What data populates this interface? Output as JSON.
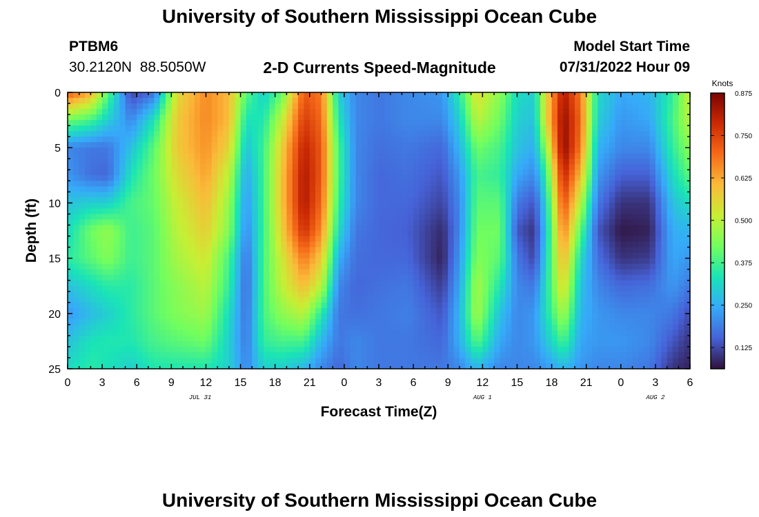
{
  "header": {
    "title": "University of Southern Mississippi Ocean Cube",
    "station_id": "PTBM6",
    "coordinates": "30.2120N  88.5050W",
    "chart_title": "2-D Currents Speed-Magnitude",
    "model_start_label": "Model Start Time",
    "model_start_value": "07/31/2022 Hour 09"
  },
  "footer": {
    "title": "University of Southern Mississippi Ocean Cube"
  },
  "chart_data": {
    "type": "heatmap",
    "title": "2-D Currents Speed-Magnitude",
    "xlabel": "Forecast Time(Z)",
    "ylabel": "Depth (ft)",
    "x_range_hours": [
      0,
      54
    ],
    "y_range_ft": [
      0,
      25
    ],
    "y_inverted": true,
    "x_tick_labels": [
      "0",
      "3",
      "6",
      "9",
      "12",
      "15",
      "18",
      "21",
      "0",
      "3",
      "6",
      "9",
      "12",
      "15",
      "18",
      "21",
      "0",
      "3",
      "6"
    ],
    "y_tick_labels": [
      "0",
      "5",
      "10",
      "15",
      "20",
      "25"
    ],
    "date_labels": [
      {
        "text": "JUL 31",
        "hour": 11.5
      },
      {
        "text": "AUG 1",
        "hour": 36
      },
      {
        "text": "AUG 2",
        "hour": 51
      }
    ],
    "colorbar": {
      "units": "Knots",
      "min": 0.0625,
      "max": 0.875,
      "tick_labels": [
        "0.125",
        "0.250",
        "0.375",
        "0.500",
        "0.625",
        "0.750",
        "0.875"
      ],
      "tick_values": [
        0.125,
        0.25,
        0.375,
        0.5,
        0.625,
        0.75,
        0.875
      ],
      "colormap": [
        "#30123b",
        "#4662d7",
        "#36aaf9",
        "#1ae4b6",
        "#72fe5e",
        "#c7ef34",
        "#faba39",
        "#f66b19",
        "#cb2a04",
        "#7a0403"
      ]
    },
    "depth_profile_samples_ft": [
      0,
      2.5,
      5,
      7.5,
      10,
      12.5,
      15,
      17.5,
      20,
      22.5,
      25
    ],
    "speed_knots_by_time": [
      {
        "hour": 0.0,
        "speeds": [
          0.72,
          0.42,
          0.2,
          0.22,
          0.28,
          0.32,
          0.35,
          0.28,
          0.22,
          0.28,
          0.32
        ]
      },
      {
        "hour": 2.0,
        "speeds": [
          0.62,
          0.38,
          0.18,
          0.17,
          0.3,
          0.42,
          0.4,
          0.32,
          0.27,
          0.33,
          0.35
        ]
      },
      {
        "hour": 3.5,
        "speeds": [
          0.4,
          0.3,
          0.18,
          0.16,
          0.3,
          0.46,
          0.44,
          0.35,
          0.3,
          0.34,
          0.33
        ]
      },
      {
        "hour": 5.5,
        "speeds": [
          0.12,
          0.2,
          0.28,
          0.33,
          0.38,
          0.37,
          0.37,
          0.35,
          0.35,
          0.34,
          0.3
        ]
      },
      {
        "hour": 7.5,
        "speeds": [
          0.17,
          0.33,
          0.4,
          0.42,
          0.41,
          0.4,
          0.4,
          0.4,
          0.4,
          0.38,
          0.34
        ]
      },
      {
        "hour": 9.5,
        "speeds": [
          0.55,
          0.58,
          0.58,
          0.55,
          0.52,
          0.5,
          0.48,
          0.45,
          0.44,
          0.4,
          0.34
        ]
      },
      {
        "hour": 12.0,
        "speeds": [
          0.66,
          0.66,
          0.65,
          0.63,
          0.6,
          0.57,
          0.53,
          0.5,
          0.47,
          0.42,
          0.34
        ]
      },
      {
        "hour": 14.0,
        "speeds": [
          0.6,
          0.6,
          0.56,
          0.5,
          0.46,
          0.44,
          0.38,
          0.36,
          0.32,
          0.3,
          0.3
        ]
      },
      {
        "hour": 15.5,
        "speeds": [
          0.4,
          0.33,
          0.28,
          0.24,
          0.22,
          0.2,
          0.17,
          0.16,
          0.17,
          0.18,
          0.2
        ]
      },
      {
        "hour": 17.0,
        "speeds": [
          0.3,
          0.34,
          0.37,
          0.37,
          0.37,
          0.37,
          0.38,
          0.38,
          0.38,
          0.36,
          0.3
        ]
      },
      {
        "hour": 18.5,
        "speeds": [
          0.4,
          0.5,
          0.56,
          0.58,
          0.58,
          0.56,
          0.52,
          0.5,
          0.45,
          0.38,
          0.3
        ]
      },
      {
        "hour": 20.5,
        "speeds": [
          0.72,
          0.76,
          0.8,
          0.82,
          0.82,
          0.78,
          0.68,
          0.6,
          0.5,
          0.38,
          0.26
        ]
      },
      {
        "hour": 22.0,
        "speeds": [
          0.68,
          0.7,
          0.72,
          0.72,
          0.7,
          0.66,
          0.58,
          0.5,
          0.35,
          0.26,
          0.2
        ]
      },
      {
        "hour": 23.5,
        "speeds": [
          0.3,
          0.34,
          0.38,
          0.38,
          0.36,
          0.32,
          0.25,
          0.2,
          0.18,
          0.18,
          0.16
        ]
      },
      {
        "hour": 25.0,
        "speeds": [
          0.2,
          0.2,
          0.2,
          0.2,
          0.2,
          0.18,
          0.17,
          0.16,
          0.17,
          0.2,
          0.2
        ]
      },
      {
        "hour": 27.0,
        "speeds": [
          0.18,
          0.18,
          0.17,
          0.16,
          0.16,
          0.16,
          0.16,
          0.17,
          0.18,
          0.18,
          0.18
        ]
      },
      {
        "hour": 29.5,
        "speeds": [
          0.2,
          0.2,
          0.18,
          0.17,
          0.16,
          0.15,
          0.16,
          0.18,
          0.19,
          0.18,
          0.18
        ]
      },
      {
        "hour": 32.5,
        "speeds": [
          0.22,
          0.2,
          0.16,
          0.14,
          0.12,
          0.09,
          0.08,
          0.11,
          0.14,
          0.16,
          0.18
        ]
      },
      {
        "hour": 34.0,
        "speeds": [
          0.35,
          0.3,
          0.26,
          0.22,
          0.2,
          0.2,
          0.22,
          0.24,
          0.26,
          0.25,
          0.2
        ]
      },
      {
        "hour": 35.5,
        "speeds": [
          0.55,
          0.5,
          0.42,
          0.38,
          0.4,
          0.42,
          0.44,
          0.48,
          0.48,
          0.4,
          0.26
        ]
      },
      {
        "hour": 37.5,
        "speeds": [
          0.45,
          0.42,
          0.38,
          0.36,
          0.4,
          0.42,
          0.4,
          0.34,
          0.28,
          0.24,
          0.2
        ]
      },
      {
        "hour": 39.0,
        "speeds": [
          0.32,
          0.3,
          0.28,
          0.24,
          0.18,
          0.14,
          0.18,
          0.2,
          0.2,
          0.2,
          0.2
        ]
      },
      {
        "hour": 40.5,
        "speeds": [
          0.3,
          0.28,
          0.25,
          0.2,
          0.14,
          0.1,
          0.12,
          0.18,
          0.22,
          0.22,
          0.2
        ]
      },
      {
        "hour": 41.5,
        "speeds": [
          0.55,
          0.55,
          0.45,
          0.35,
          0.3,
          0.28,
          0.3,
          0.32,
          0.32,
          0.28,
          0.22
        ]
      },
      {
        "hour": 43.0,
        "speeds": [
          0.82,
          0.85,
          0.86,
          0.8,
          0.74,
          0.68,
          0.62,
          0.56,
          0.48,
          0.38,
          0.26
        ]
      },
      {
        "hour": 44.5,
        "speeds": [
          0.68,
          0.7,
          0.68,
          0.6,
          0.5,
          0.4,
          0.32,
          0.28,
          0.26,
          0.24,
          0.22
        ]
      },
      {
        "hour": 46.0,
        "speeds": [
          0.32,
          0.3,
          0.26,
          0.22,
          0.18,
          0.14,
          0.17,
          0.2,
          0.22,
          0.22,
          0.2
        ]
      },
      {
        "hour": 48.0,
        "speeds": [
          0.24,
          0.22,
          0.2,
          0.15,
          0.1,
          0.07,
          0.1,
          0.16,
          0.2,
          0.22,
          0.2
        ]
      },
      {
        "hour": 50.5,
        "speeds": [
          0.26,
          0.24,
          0.2,
          0.15,
          0.1,
          0.08,
          0.11,
          0.17,
          0.2,
          0.2,
          0.18
        ]
      },
      {
        "hour": 52.5,
        "speeds": [
          0.36,
          0.38,
          0.36,
          0.32,
          0.28,
          0.25,
          0.24,
          0.22,
          0.18,
          0.14,
          0.1
        ]
      },
      {
        "hour": 54.0,
        "speeds": [
          0.52,
          0.5,
          0.45,
          0.4,
          0.32,
          0.26,
          0.22,
          0.18,
          0.13,
          0.1,
          0.08
        ]
      }
    ]
  }
}
